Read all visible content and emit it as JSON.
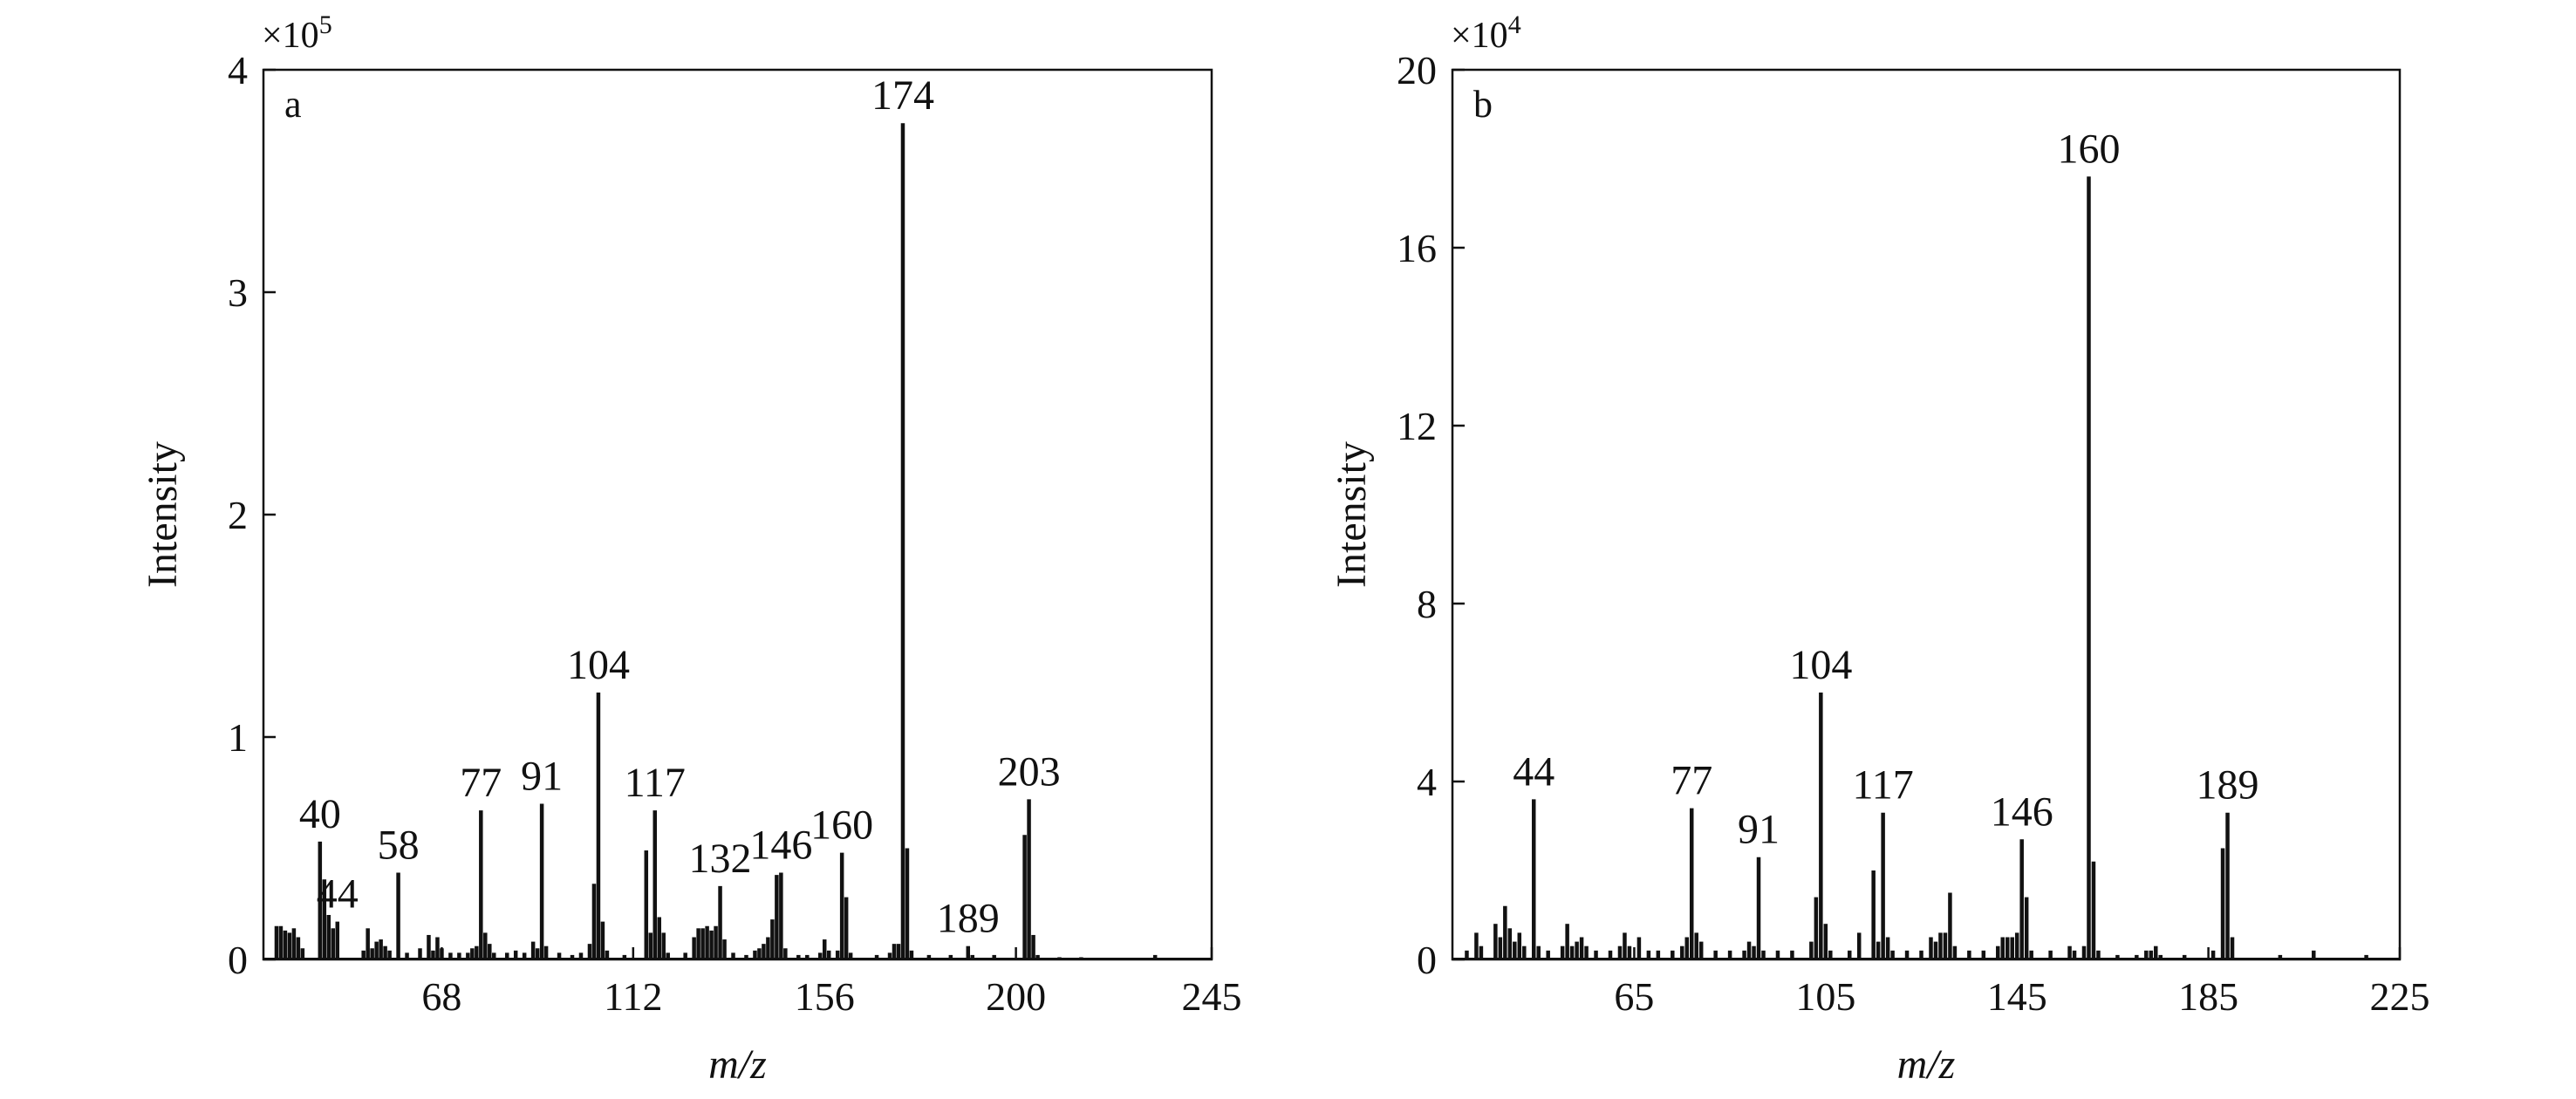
{
  "chart_data": [
    {
      "type": "bar",
      "panel_label": "a",
      "xlabel": "m/z",
      "ylabel": "Intensity",
      "y_multiplier": {
        "base": "×10",
        "exponent": "5"
      },
      "xlim": [
        27,
        245
      ],
      "ylim": [
        0,
        4
      ],
      "xticks": [
        {
          "value": 68,
          "label": "68"
        },
        {
          "value": 112,
          "label": "112"
        },
        {
          "value": 156,
          "label": "156"
        },
        {
          "value": 200,
          "label": "200"
        },
        {
          "value": 245,
          "label": "245"
        }
      ],
      "yticks": [
        {
          "value": 0,
          "label": "0"
        },
        {
          "value": 1,
          "label": "1"
        },
        {
          "value": 2,
          "label": "2"
        },
        {
          "value": 3,
          "label": "3"
        },
        {
          "value": 4,
          "label": "4"
        }
      ],
      "peaks": [
        {
          "mz": 30,
          "value": 0.15
        },
        {
          "mz": 31,
          "value": 0.15
        },
        {
          "mz": 32,
          "value": 0.13
        },
        {
          "mz": 33,
          "value": 0.12
        },
        {
          "mz": 34,
          "value": 0.14
        },
        {
          "mz": 35,
          "value": 0.1
        },
        {
          "mz": 36,
          "value": 0.05
        },
        {
          "mz": 40,
          "value": 0.53,
          "label": "40"
        },
        {
          "mz": 41,
          "value": 0.36
        },
        {
          "mz": 42,
          "value": 0.2
        },
        {
          "mz": 43,
          "value": 0.14
        },
        {
          "mz": 44,
          "value": 0.17,
          "label": "44"
        },
        {
          "mz": 50,
          "value": 0.04
        },
        {
          "mz": 51,
          "value": 0.14
        },
        {
          "mz": 52,
          "value": 0.05
        },
        {
          "mz": 53,
          "value": 0.08
        },
        {
          "mz": 54,
          "value": 0.09
        },
        {
          "mz": 55,
          "value": 0.06
        },
        {
          "mz": 56,
          "value": 0.04
        },
        {
          "mz": 58,
          "value": 0.39,
          "label": "58"
        },
        {
          "mz": 60,
          "value": 0.03
        },
        {
          "mz": 63,
          "value": 0.05
        },
        {
          "mz": 65,
          "value": 0.11
        },
        {
          "mz": 66,
          "value": 0.04
        },
        {
          "mz": 67,
          "value": 0.1
        },
        {
          "mz": 68,
          "value": 0.05
        },
        {
          "mz": 70,
          "value": 0.03
        },
        {
          "mz": 72,
          "value": 0.03
        },
        {
          "mz": 74,
          "value": 0.03
        },
        {
          "mz": 75,
          "value": 0.05
        },
        {
          "mz": 76,
          "value": 0.06
        },
        {
          "mz": 77,
          "value": 0.67,
          "label": "77"
        },
        {
          "mz": 78,
          "value": 0.12
        },
        {
          "mz": 79,
          "value": 0.07
        },
        {
          "mz": 80,
          "value": 0.03
        },
        {
          "mz": 83,
          "value": 0.03
        },
        {
          "mz": 85,
          "value": 0.04
        },
        {
          "mz": 87,
          "value": 0.03
        },
        {
          "mz": 89,
          "value": 0.08
        },
        {
          "mz": 90,
          "value": 0.05
        },
        {
          "mz": 91,
          "value": 0.7,
          "label": "91"
        },
        {
          "mz": 92,
          "value": 0.06
        },
        {
          "mz": 95,
          "value": 0.03
        },
        {
          "mz": 98,
          "value": 0.02
        },
        {
          "mz": 100,
          "value": 0.03
        },
        {
          "mz": 102,
          "value": 0.07
        },
        {
          "mz": 103,
          "value": 0.34
        },
        {
          "mz": 104,
          "value": 1.2,
          "label": "104"
        },
        {
          "mz": 105,
          "value": 0.17
        },
        {
          "mz": 106,
          "value": 0.04
        },
        {
          "mz": 110,
          "value": 0.02
        },
        {
          "mz": 115,
          "value": 0.49
        },
        {
          "mz": 116,
          "value": 0.12
        },
        {
          "mz": 117,
          "value": 0.67,
          "label": "117"
        },
        {
          "mz": 118,
          "value": 0.19
        },
        {
          "mz": 119,
          "value": 0.12
        },
        {
          "mz": 120,
          "value": 0.03
        },
        {
          "mz": 124,
          "value": 0.03
        },
        {
          "mz": 126,
          "value": 0.1
        },
        {
          "mz": 127,
          "value": 0.14
        },
        {
          "mz": 128,
          "value": 0.14
        },
        {
          "mz": 129,
          "value": 0.15
        },
        {
          "mz": 130,
          "value": 0.13
        },
        {
          "mz": 131,
          "value": 0.15
        },
        {
          "mz": 132,
          "value": 0.33,
          "label": "132"
        },
        {
          "mz": 133,
          "value": 0.09
        },
        {
          "mz": 135,
          "value": 0.03
        },
        {
          "mz": 138,
          "value": 0.02
        },
        {
          "mz": 140,
          "value": 0.04
        },
        {
          "mz": 141,
          "value": 0.05
        },
        {
          "mz": 142,
          "value": 0.07
        },
        {
          "mz": 143,
          "value": 0.1
        },
        {
          "mz": 144,
          "value": 0.18
        },
        {
          "mz": 145,
          "value": 0.38
        },
        {
          "mz": 146,
          "value": 0.39,
          "label": "146"
        },
        {
          "mz": 147,
          "value": 0.05
        },
        {
          "mz": 150,
          "value": 0.02
        },
        {
          "mz": 152,
          "value": 0.02
        },
        {
          "mz": 155,
          "value": 0.03
        },
        {
          "mz": 156,
          "value": 0.09
        },
        {
          "mz": 157,
          "value": 0.04
        },
        {
          "mz": 159,
          "value": 0.04
        },
        {
          "mz": 160,
          "value": 0.48,
          "label": "160"
        },
        {
          "mz": 161,
          "value": 0.28
        },
        {
          "mz": 162,
          "value": 0.03
        },
        {
          "mz": 168,
          "value": 0.02
        },
        {
          "mz": 171,
          "value": 0.03
        },
        {
          "mz": 172,
          "value": 0.07
        },
        {
          "mz": 173,
          "value": 0.07
        },
        {
          "mz": 174,
          "value": 3.76,
          "label": "174"
        },
        {
          "mz": 175,
          "value": 0.5
        },
        {
          "mz": 176,
          "value": 0.04
        },
        {
          "mz": 180,
          "value": 0.02
        },
        {
          "mz": 185,
          "value": 0.02
        },
        {
          "mz": 189,
          "value": 0.06,
          "label": "189"
        },
        {
          "mz": 190,
          "value": 0.02
        },
        {
          "mz": 195,
          "value": 0.02
        },
        {
          "mz": 202,
          "value": 0.56
        },
        {
          "mz": 203,
          "value": 0.72,
          "label": "203"
        },
        {
          "mz": 204,
          "value": 0.11
        },
        {
          "mz": 205,
          "value": 0.02
        },
        {
          "mz": 210,
          "value": 0.01
        },
        {
          "mz": 215,
          "value": 0.01
        },
        {
          "mz": 232,
          "value": 0.02
        }
      ]
    },
    {
      "type": "bar",
      "panel_label": "b",
      "xlabel": "m/z",
      "ylabel": "Intensity",
      "y_multiplier": {
        "base": "×10",
        "exponent": "4"
      },
      "xlim": [
        27,
        225
      ],
      "ylim": [
        0,
        20
      ],
      "xticks": [
        {
          "value": 65,
          "label": "65"
        },
        {
          "value": 105,
          "label": "105"
        },
        {
          "value": 145,
          "label": "145"
        },
        {
          "value": 185,
          "label": "185"
        },
        {
          "value": 225,
          "label": "225"
        }
      ],
      "yticks": [
        {
          "value": 0,
          "label": "0"
        },
        {
          "value": 4,
          "label": "4"
        },
        {
          "value": 8,
          "label": "8"
        },
        {
          "value": 12,
          "label": "12"
        },
        {
          "value": 16,
          "label": "16"
        },
        {
          "value": 20,
          "label": "20"
        }
      ],
      "peaks": [
        {
          "mz": 30,
          "value": 0.2
        },
        {
          "mz": 32,
          "value": 0.6
        },
        {
          "mz": 33,
          "value": 0.3
        },
        {
          "mz": 36,
          "value": 0.8
        },
        {
          "mz": 37,
          "value": 0.5
        },
        {
          "mz": 38,
          "value": 1.2
        },
        {
          "mz": 39,
          "value": 0.7
        },
        {
          "mz": 40,
          "value": 0.4
        },
        {
          "mz": 41,
          "value": 0.6
        },
        {
          "mz": 42,
          "value": 0.3
        },
        {
          "mz": 44,
          "value": 3.6,
          "label": "44"
        },
        {
          "mz": 45,
          "value": 0.3
        },
        {
          "mz": 47,
          "value": 0.2
        },
        {
          "mz": 50,
          "value": 0.3
        },
        {
          "mz": 51,
          "value": 0.8
        },
        {
          "mz": 52,
          "value": 0.3
        },
        {
          "mz": 53,
          "value": 0.4
        },
        {
          "mz": 54,
          "value": 0.5
        },
        {
          "mz": 55,
          "value": 0.3
        },
        {
          "mz": 57,
          "value": 0.2
        },
        {
          "mz": 60,
          "value": 0.2
        },
        {
          "mz": 62,
          "value": 0.3
        },
        {
          "mz": 63,
          "value": 0.6
        },
        {
          "mz": 64,
          "value": 0.3
        },
        {
          "mz": 66,
          "value": 0.5
        },
        {
          "mz": 68,
          "value": 0.2
        },
        {
          "mz": 70,
          "value": 0.2
        },
        {
          "mz": 73,
          "value": 0.2
        },
        {
          "mz": 75,
          "value": 0.3
        },
        {
          "mz": 76,
          "value": 0.5
        },
        {
          "mz": 77,
          "value": 3.4,
          "label": "77"
        },
        {
          "mz": 78,
          "value": 0.6
        },
        {
          "mz": 79,
          "value": 0.4
        },
        {
          "mz": 82,
          "value": 0.2
        },
        {
          "mz": 85,
          "value": 0.2
        },
        {
          "mz": 88,
          "value": 0.2
        },
        {
          "mz": 89,
          "value": 0.4
        },
        {
          "mz": 90,
          "value": 0.3
        },
        {
          "mz": 91,
          "value": 2.3,
          "label": "91"
        },
        {
          "mz": 92,
          "value": 0.2
        },
        {
          "mz": 95,
          "value": 0.2
        },
        {
          "mz": 98,
          "value": 0.2
        },
        {
          "mz": 102,
          "value": 0.4
        },
        {
          "mz": 103,
          "value": 1.4
        },
        {
          "mz": 104,
          "value": 6.0,
          "label": "104"
        },
        {
          "mz": 105,
          "value": 0.8
        },
        {
          "mz": 106,
          "value": 0.2
        },
        {
          "mz": 110,
          "value": 0.2
        },
        {
          "mz": 112,
          "value": 0.6
        },
        {
          "mz": 115,
          "value": 2.0
        },
        {
          "mz": 116,
          "value": 0.4
        },
        {
          "mz": 117,
          "value": 3.3,
          "label": "117"
        },
        {
          "mz": 118,
          "value": 0.5
        },
        {
          "mz": 119,
          "value": 0.2
        },
        {
          "mz": 122,
          "value": 0.2
        },
        {
          "mz": 125,
          "value": 0.2
        },
        {
          "mz": 127,
          "value": 0.5
        },
        {
          "mz": 128,
          "value": 0.4
        },
        {
          "mz": 129,
          "value": 0.6
        },
        {
          "mz": 130,
          "value": 0.6
        },
        {
          "mz": 131,
          "value": 1.5
        },
        {
          "mz": 132,
          "value": 0.3
        },
        {
          "mz": 135,
          "value": 0.2
        },
        {
          "mz": 138,
          "value": 0.2
        },
        {
          "mz": 141,
          "value": 0.3
        },
        {
          "mz": 142,
          "value": 0.5
        },
        {
          "mz": 143,
          "value": 0.5
        },
        {
          "mz": 144,
          "value": 0.5
        },
        {
          "mz": 145,
          "value": 0.6
        },
        {
          "mz": 146,
          "value": 2.7,
          "label": "146"
        },
        {
          "mz": 147,
          "value": 1.4
        },
        {
          "mz": 148,
          "value": 0.2
        },
        {
          "mz": 152,
          "value": 0.2
        },
        {
          "mz": 156,
          "value": 0.3
        },
        {
          "mz": 157,
          "value": 0.2
        },
        {
          "mz": 159,
          "value": 0.3
        },
        {
          "mz": 160,
          "value": 17.6,
          "label": "160"
        },
        {
          "mz": 161,
          "value": 2.2
        },
        {
          "mz": 162,
          "value": 0.2
        },
        {
          "mz": 166,
          "value": 0.1
        },
        {
          "mz": 170,
          "value": 0.1
        },
        {
          "mz": 172,
          "value": 0.2
        },
        {
          "mz": 173,
          "value": 0.2
        },
        {
          "mz": 174,
          "value": 0.3
        },
        {
          "mz": 175,
          "value": 0.1
        },
        {
          "mz": 180,
          "value": 0.1
        },
        {
          "mz": 186,
          "value": 0.2
        },
        {
          "mz": 188,
          "value": 2.5
        },
        {
          "mz": 189,
          "value": 3.3,
          "label": "189"
        },
        {
          "mz": 190,
          "value": 0.5
        },
        {
          "mz": 200,
          "value": 0.1
        },
        {
          "mz": 207,
          "value": 0.2
        },
        {
          "mz": 218,
          "value": 0.1
        }
      ]
    }
  ]
}
